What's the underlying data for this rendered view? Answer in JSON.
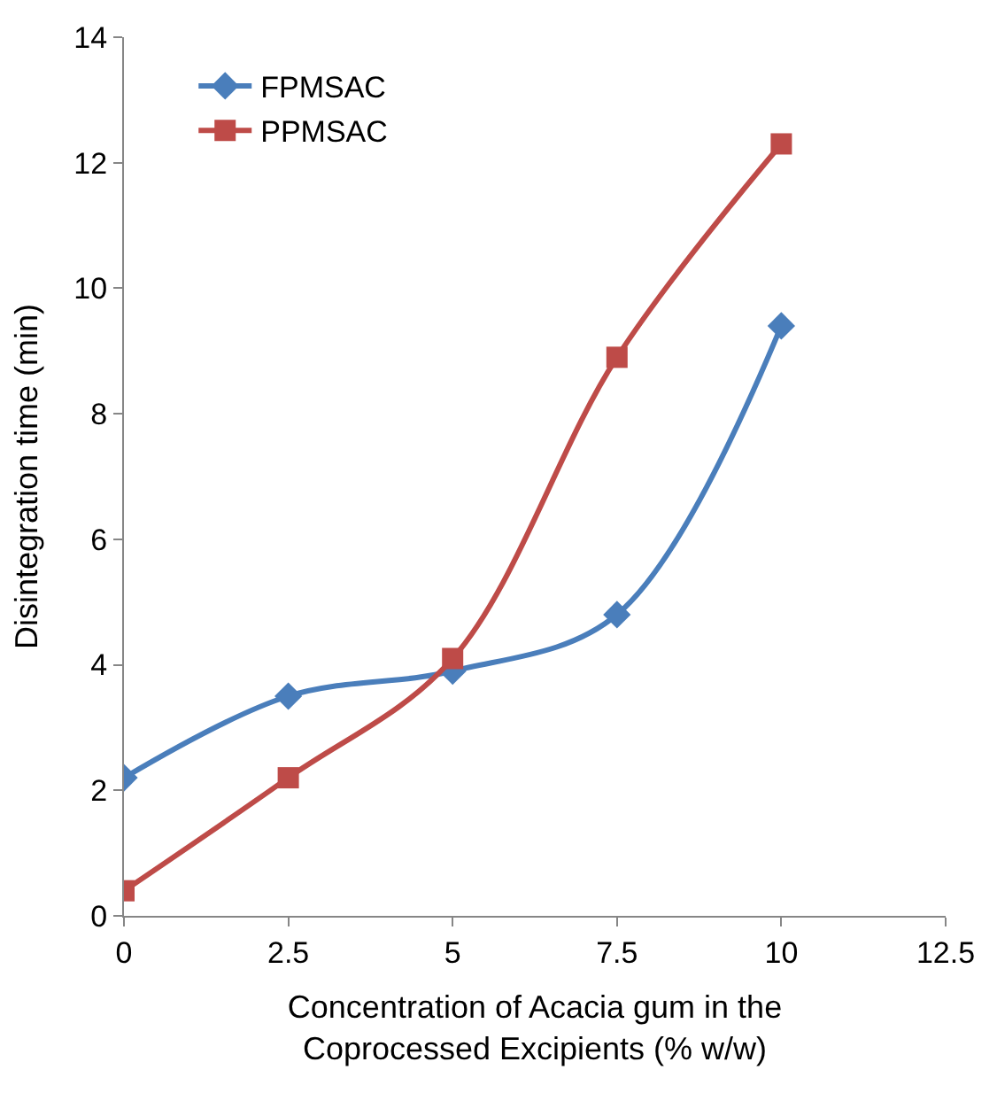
{
  "chart_data": {
    "type": "line",
    "xlabel": "Concentration of Acacia gum in the\nCoprocessed Excipients (% w/w)",
    "ylabel": "Disintegration time (min)",
    "x": [
      0,
      2.5,
      5,
      7.5,
      10
    ],
    "series": [
      {
        "name": "FPMSAC",
        "color": "#4a7ebb",
        "marker": "diamond",
        "values": [
          2.2,
          3.5,
          3.9,
          4.8,
          9.4
        ]
      },
      {
        "name": "PPMSAC",
        "color": "#be4b48",
        "marker": "square",
        "values": [
          0.4,
          2.2,
          4.1,
          8.9,
          12.3
        ]
      }
    ],
    "xlim": [
      0,
      12.5
    ],
    "xticks": [
      0,
      2.5,
      5,
      7.5,
      10,
      12.5
    ],
    "ylim": [
      0,
      14
    ],
    "yticks": [
      0,
      2,
      4,
      6,
      8,
      10,
      12,
      14
    ],
    "legend": "top left",
    "line_style": "solid"
  }
}
